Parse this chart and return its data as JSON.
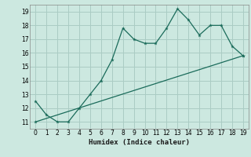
{
  "xlabel": "Humidex (Indice chaleur)",
  "bg_color": "#cce8e0",
  "grid_color": "#aaccc4",
  "line_color": "#1a6b5a",
  "xlim": [
    -0.5,
    19.5
  ],
  "ylim": [
    10.5,
    19.5
  ],
  "xticks": [
    0,
    1,
    2,
    3,
    4,
    5,
    6,
    7,
    8,
    9,
    10,
    11,
    12,
    13,
    14,
    15,
    16,
    17,
    18,
    19
  ],
  "yticks": [
    11,
    12,
    13,
    14,
    15,
    16,
    17,
    18,
    19
  ],
  "curve1_x": [
    0,
    1,
    2,
    3,
    4,
    5,
    6,
    7,
    8,
    9,
    10,
    11,
    12,
    13,
    14,
    15,
    16,
    17,
    18,
    19
  ],
  "curve1_y": [
    12.5,
    11.5,
    11.0,
    11.0,
    12.0,
    13.0,
    14.0,
    15.5,
    17.8,
    17.0,
    16.7,
    16.7,
    17.8,
    19.2,
    18.4,
    17.3,
    18.0,
    18.0,
    16.5,
    15.8
  ],
  "curve2_x": [
    0,
    19
  ],
  "curve2_y": [
    11.0,
    15.8
  ]
}
